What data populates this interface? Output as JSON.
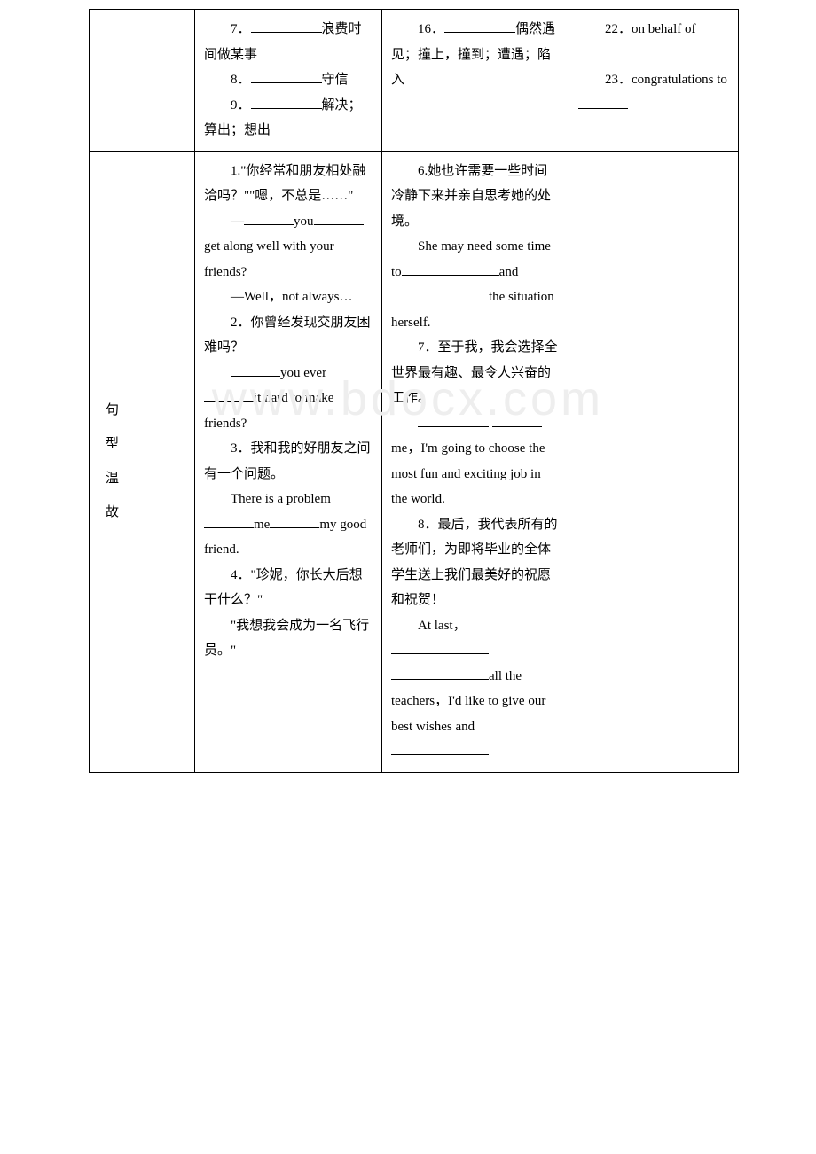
{
  "watermark": "www.bdocx.com",
  "row1": {
    "label": "",
    "colA": {
      "p7": {
        "num": "7．",
        "text": "浪费时间做某事"
      },
      "p8": {
        "num": "8．",
        "text": "守信"
      },
      "p9": {
        "num": "9．",
        "text": "解决；算出；想出"
      }
    },
    "colB": {
      "p16": {
        "num": "16．",
        "text": "偶然遇见；撞上，撞到；遭遇；陷入"
      }
    },
    "colC": {
      "p22": {
        "num": "22．",
        "pre": "on behalf of"
      },
      "p23": {
        "num": "23．",
        "pre": "congratulations to"
      }
    }
  },
  "row2": {
    "label1": "句",
    "label2": "型",
    "label3": "温",
    "label4": "故",
    "colA": {
      "p1": {
        "text": "1.\"你经常和朋友相处融洽吗？\"\"嗯，不总是……\""
      },
      "p1b_pre": "—",
      "p1b_mid1": "you",
      "p1b_tail": "get along well with your friends?",
      "p1c": "—Well，not always…",
      "p2": "2．你曾经发现交朋友困难吗？",
      "p2b_mid1": "you ever",
      "p2b_tail": "it hard to make friends?",
      "p3": "3．我和我的好朋友之间有一个问题。",
      "p3b_pre": "There is a problem",
      "p3b_mid": "me",
      "p3b_tail": "my good friend.",
      "p4": "4．\"珍妮，你长大后想干什么？\"",
      "p4b": "\"我想我会成为一名飞行员。\""
    },
    "colB": {
      "p6": "6.她也许需要一些时间冷静下来并亲自思考她的处境。",
      "p6b_pre": "She may need some time to",
      "p6b_mid": "and",
      "p6b_tail": "the situation herself.",
      "p7": "7．至于我，我会选择全世界最有趣、最令人兴奋的工作。",
      "p7b_mid": "me，I'm going to choose the most fun and exciting job in the world.",
      "p8": "8．最后，我代表所有的老师们，为即将毕业的全体学生送上我们最美好的祝愿和祝贺！",
      "p8b_pre": "At last，",
      "p8b_mid": "all the teachers，I'd like to give our best wishes and"
    }
  }
}
